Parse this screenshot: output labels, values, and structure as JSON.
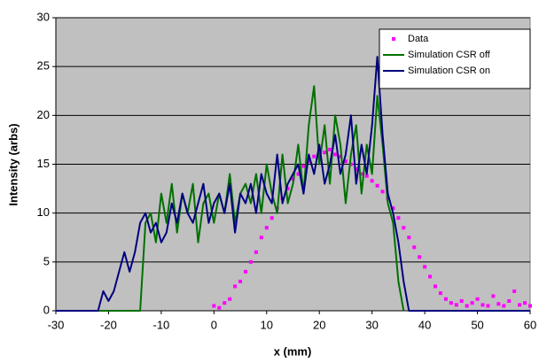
{
  "chart_data": {
    "type": "line",
    "xlabel": "x (mm)",
    "ylabel": "Intensity (arbs)",
    "xlim": [
      -30,
      60
    ],
    "xticks": [
      -30,
      -20,
      -10,
      0,
      10,
      20,
      30,
      40,
      50,
      60
    ],
    "ylim": [
      0,
      30
    ],
    "yticks": [
      0,
      5,
      10,
      15,
      20,
      25,
      30
    ],
    "grid": true,
    "legend": "upper right",
    "series": [
      {
        "name": "Data",
        "color": "#ff00ff",
        "mode": "scatter",
        "x": [
          0,
          1,
          2,
          3,
          4,
          5,
          6,
          7,
          8,
          9,
          10,
          11,
          12,
          13,
          14,
          15,
          16,
          17,
          18,
          19,
          20,
          21,
          22,
          23,
          24,
          25,
          26,
          27,
          28,
          29,
          30,
          31,
          32,
          33,
          34,
          35,
          36,
          37,
          38,
          39,
          40,
          41,
          42,
          43,
          44,
          45,
          46,
          47,
          48,
          49,
          50,
          51,
          52,
          53,
          54,
          55,
          56,
          57,
          58,
          59,
          60
        ],
        "values": [
          0.5,
          0.3,
          0.8,
          1.2,
          2.5,
          3,
          4,
          5,
          6,
          7.5,
          8.5,
          9.5,
          10.5,
          11.5,
          12.5,
          13.5,
          14,
          14.8,
          15.3,
          15.8,
          16,
          16.2,
          16.5,
          16,
          15.8,
          15.3,
          15,
          14.5,
          14,
          13.8,
          13.3,
          12.8,
          12.2,
          11.5,
          10.5,
          9.5,
          8.5,
          7.5,
          6.5,
          5.5,
          4.5,
          3.5,
          2.5,
          1.8,
          1.2,
          0.8,
          0.6,
          1,
          0.5,
          0.8,
          1.2,
          0.6,
          0.5,
          1.5,
          0.7,
          0.5,
          1,
          2,
          0.6,
          0.8,
          0.5
        ]
      },
      {
        "name": "Simulation CSR off",
        "color": "#007000",
        "mode": "line",
        "x": [
          -30,
          -14,
          -13,
          -12,
          -11,
          -10,
          -9,
          -8,
          -7,
          -6,
          -5,
          -4,
          -3,
          -2,
          -1,
          0,
          1,
          2,
          3,
          4,
          5,
          6,
          7,
          8,
          9,
          10,
          11,
          12,
          13,
          14,
          15,
          16,
          17,
          18,
          19,
          20,
          21,
          22,
          23,
          24,
          25,
          26,
          27,
          28,
          29,
          30,
          31,
          32,
          33,
          34,
          35,
          36
        ],
        "values": [
          0,
          0,
          9,
          10,
          7,
          12,
          9,
          13,
          8,
          12,
          10,
          13,
          7,
          11,
          12,
          9,
          12,
          10,
          14,
          9,
          12,
          13,
          11,
          14,
          10,
          15,
          12,
          10,
          16,
          11,
          13,
          17,
          12,
          19,
          23,
          15,
          19,
          13,
          20,
          17,
          11,
          16,
          19,
          12,
          17,
          14,
          22,
          17,
          11,
          9,
          3,
          0
        ]
      },
      {
        "name": "Simulation CSR on",
        "color": "#000080",
        "mode": "line",
        "x": [
          -30,
          -22,
          -21,
          -20,
          -19,
          -18,
          -17,
          -16,
          -15,
          -14,
          -13,
          -12,
          -11,
          -10,
          -9,
          -8,
          -7,
          -6,
          -5,
          -4,
          -3,
          -2,
          -1,
          0,
          1,
          2,
          3,
          4,
          5,
          6,
          7,
          8,
          9,
          10,
          11,
          12,
          13,
          14,
          15,
          16,
          17,
          18,
          19,
          20,
          21,
          22,
          23,
          24,
          25,
          26,
          27,
          28,
          29,
          30,
          31,
          32,
          33,
          34,
          35,
          36,
          37,
          60
        ],
        "values": [
          0,
          0,
          2,
          1,
          2,
          4,
          6,
          4,
          6,
          9,
          10,
          8,
          9,
          7,
          8,
          11,
          9,
          12,
          10,
          9,
          11,
          13,
          9,
          11,
          12,
          10,
          13,
          8,
          12,
          11,
          13,
          10,
          14,
          12,
          11,
          16,
          11,
          13,
          14,
          15,
          12,
          16,
          14,
          17,
          13,
          15,
          18,
          14,
          16,
          20,
          13,
          17,
          14,
          19,
          26,
          18,
          12,
          10,
          7,
          3,
          0,
          0
        ]
      }
    ]
  }
}
